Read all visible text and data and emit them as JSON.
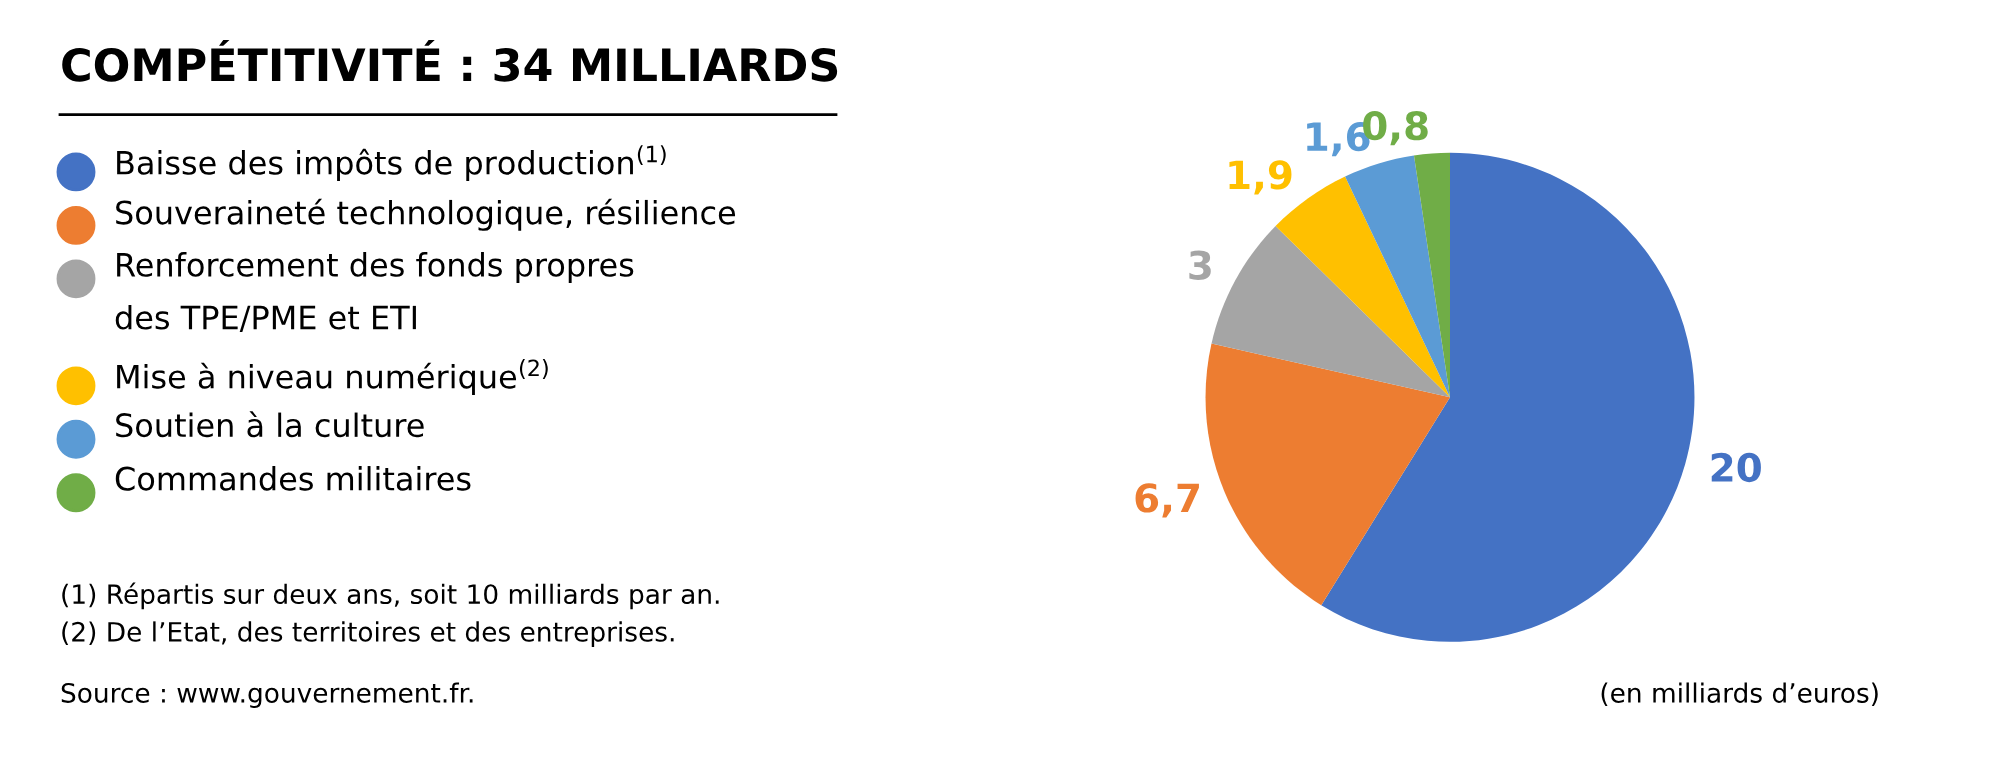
{
  "chart_data": {
    "type": "pie",
    "title": "COMPÉTITIVITÉ : 34 MILLIARDS",
    "categories": [
      "Baisse des impôts de production$^{(1)}$",
      "Souveraineté technologique, résilience",
      "Renforcement des fonds propres\ndes TPE/PME et ETI",
      "Mise à niveau numérique$^{(2)}$",
      "Soutien à la culture",
      "Commandes militaires"
    ],
    "values": [
      20,
      6.7,
      3,
      1.9,
      1.6,
      0.8
    ],
    "value_labels": [
      "20",
      "6,7",
      "3",
      "1,9",
      "1,6",
      "0,8"
    ],
    "colors": [
      "#4472c4",
      "#ed7d31",
      "#a5a5a5",
      "#ffc000",
      "#5b9bd5",
      "#70ad47"
    ],
    "legend": "left",
    "annotations": [
      "(1) Répartis sur deux ans, soit 10 milliards par an.",
      "(2) De l’Etat, des territoires et des entreprises.",
      "Source : www.gouvernement.fr.",
      "(en milliards d’euros)"
    ]
  }
}
